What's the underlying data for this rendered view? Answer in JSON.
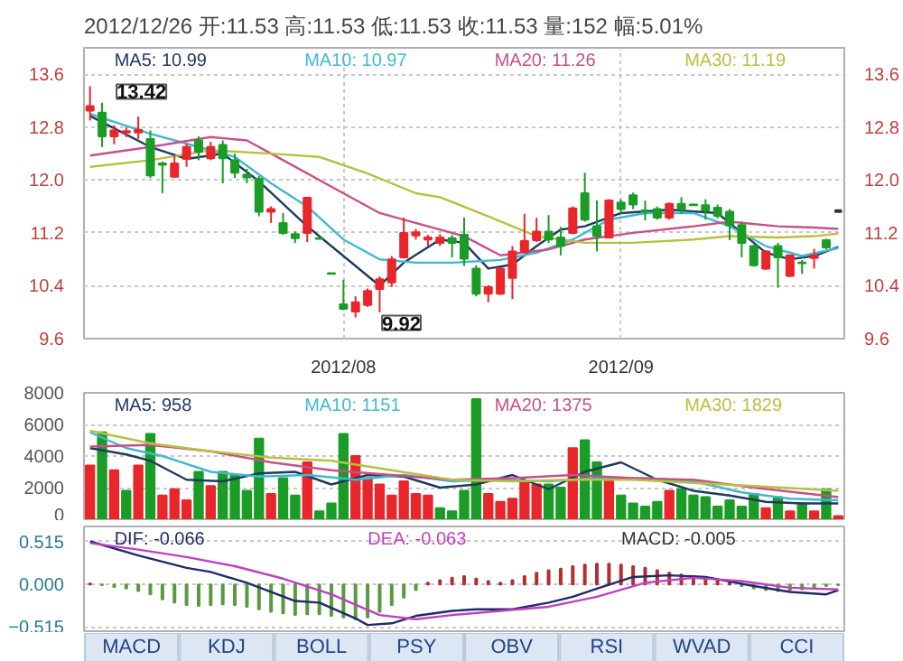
{
  "chart_data": [
    {
      "type": "candlestick",
      "title": "2012/12/26 开:11.53 高:11.53 低:11.53 收:11.53 量:152 幅:5.01%",
      "categories": [
        null,
        null,
        null,
        null,
        null,
        null,
        null,
        null,
        null,
        null,
        null,
        null,
        null,
        null,
        null,
        null,
        null,
        null,
        null,
        null,
        null,
        "2012/08",
        null,
        null,
        null,
        null,
        null,
        null,
        null,
        null,
        null,
        null,
        null,
        null,
        null,
        null,
        null,
        null,
        null,
        null,
        null,
        null,
        null,
        null,
        "2012/09",
        null,
        null,
        null,
        null,
        null,
        null,
        null,
        null,
        null,
        null,
        null,
        null,
        null,
        null,
        null,
        null,
        null,
        null
      ],
      "ohlc": [
        [
          13.05,
          13.42,
          12.9,
          13.12
        ],
        [
          13.02,
          13.17,
          12.5,
          12.66
        ],
        [
          12.66,
          12.83,
          12.54,
          12.75
        ],
        [
          12.72,
          12.8,
          12.65,
          12.74
        ],
        [
          12.72,
          12.96,
          12.62,
          12.76
        ],
        [
          12.62,
          12.75,
          12.03,
          12.07
        ],
        [
          12.25,
          12.28,
          11.8,
          12.23
        ],
        [
          12.05,
          12.37,
          12.03,
          12.25
        ],
        [
          12.32,
          12.55,
          12.2,
          12.5
        ],
        [
          12.6,
          12.66,
          12.3,
          12.43
        ],
        [
          12.33,
          12.58,
          12.3,
          12.5
        ],
        [
          12.53,
          12.6,
          11.95,
          12.33
        ],
        [
          12.3,
          12.4,
          12.03,
          12.11
        ],
        [
          12.08,
          12.17,
          11.95,
          12.04
        ],
        [
          12.02,
          12.06,
          11.45,
          11.52
        ],
        [
          11.52,
          11.6,
          11.35,
          11.56
        ],
        [
          11.35,
          11.5,
          11.17,
          11.2
        ],
        [
          11.18,
          11.22,
          11.05,
          11.12
        ],
        [
          11.2,
          11.74,
          11.06,
          11.73
        ],
        [
          11.12,
          11.12,
          11.11,
          11.11
        ],
        [
          10.59,
          10.59,
          10.58,
          10.58
        ],
        [
          10.12,
          10.49,
          10.03,
          10.05
        ],
        [
          10.01,
          10.24,
          9.92,
          10.15
        ],
        [
          10.11,
          10.36,
          10.08,
          10.32
        ],
        [
          10.35,
          10.54,
          10.0,
          10.5
        ],
        [
          10.45,
          10.85,
          10.38,
          10.8
        ],
        [
          10.83,
          11.43,
          10.81,
          11.2
        ],
        [
          11.16,
          11.26,
          11.1,
          11.21
        ],
        [
          11.1,
          11.17,
          11.0,
          11.13
        ],
        [
          11.05,
          11.18,
          11.0,
          11.13
        ],
        [
          11.12,
          11.17,
          10.83,
          11.05
        ],
        [
          11.17,
          11.43,
          10.7,
          10.81
        ],
        [
          10.66,
          10.71,
          10.24,
          10.28
        ],
        [
          10.28,
          10.41,
          10.15,
          10.38
        ],
        [
          10.28,
          10.68,
          10.26,
          10.66
        ],
        [
          10.52,
          11.0,
          10.2,
          10.92
        ],
        [
          10.92,
          11.49,
          10.9,
          11.08
        ],
        [
          11.09,
          11.43,
          11.06,
          11.22
        ],
        [
          11.22,
          11.47,
          11.05,
          11.1
        ],
        [
          11.13,
          11.29,
          10.86,
          11.0
        ],
        [
          11.2,
          11.6,
          11.18,
          11.57
        ],
        [
          11.8,
          12.11,
          11.37,
          11.4
        ],
        [
          11.3,
          11.69,
          10.92,
          11.15
        ],
        [
          11.13,
          11.71,
          11.12,
          11.69
        ],
        [
          11.66,
          11.71,
          11.49,
          11.56
        ],
        [
          11.77,
          11.81,
          11.56,
          11.63
        ],
        [
          11.54,
          11.69,
          11.39,
          11.52
        ],
        [
          11.56,
          11.6,
          11.4,
          11.43
        ],
        [
          11.43,
          11.66,
          11.4,
          11.64
        ],
        [
          11.64,
          11.74,
          11.49,
          11.56
        ],
        [
          11.63,
          11.63,
          11.62,
          11.62
        ],
        [
          11.62,
          11.71,
          11.4,
          11.54
        ],
        [
          11.58,
          11.63,
          11.42,
          11.46
        ],
        [
          11.52,
          11.56,
          11.09,
          11.32
        ],
        [
          11.32,
          11.37,
          10.83,
          11.05
        ],
        [
          11.0,
          11.02,
          10.69,
          10.71
        ],
        [
          10.66,
          10.94,
          10.64,
          10.92
        ],
        [
          11.0,
          11.05,
          10.37,
          10.83
        ],
        [
          10.55,
          10.87,
          10.53,
          10.86
        ],
        [
          10.75,
          10.79,
          10.58,
          10.74
        ],
        [
          10.82,
          10.96,
          10.66,
          10.86
        ],
        [
          11.09,
          11.11,
          10.95,
          10.98
        ],
        [
          11.53,
          11.53,
          11.53,
          11.53
        ]
      ],
      "series": [
        {
          "name": "MA5: 10.99",
          "type": "line",
          "color": "#1f3a60",
          "values": [
            12.97,
            null,
            null,
            null,
            null,
            12.5,
            null,
            null,
            12.32,
            null,
            null,
            12.4,
            null,
            null,
            11.98,
            null,
            null,
            null,
            11.3,
            null,
            null,
            null,
            10.7,
            null,
            10.4,
            null,
            10.75,
            null,
            null,
            11.1,
            null,
            11.05,
            null,
            10.66,
            null,
            10.72,
            null,
            11.0,
            null,
            11.25,
            null,
            11.3,
            null,
            null,
            11.5,
            null,
            null,
            null,
            11.55,
            null,
            null,
            null,
            11.5,
            null,
            11.2,
            null,
            10.9,
            null,
            10.8,
            null,
            10.85,
            null,
            10.99
          ]
        },
        {
          "name": "MA10: 10.97",
          "type": "line",
          "color": "#3fb8d0",
          "values": [
            13.0,
            null,
            null,
            null,
            null,
            12.7,
            null,
            null,
            null,
            12.5,
            null,
            null,
            12.35,
            null,
            null,
            11.95,
            null,
            null,
            11.6,
            null,
            null,
            11.1,
            null,
            null,
            10.8,
            null,
            null,
            10.75,
            null,
            null,
            10.75,
            null,
            null,
            null,
            10.79,
            null,
            null,
            10.9,
            null,
            null,
            11.1,
            null,
            null,
            11.4,
            null,
            null,
            11.5,
            null,
            null,
            null,
            11.5,
            null,
            null,
            11.3,
            null,
            null,
            11.0,
            null,
            null,
            10.85,
            null,
            null,
            10.97
          ]
        },
        {
          "name": "MA20: 11.26",
          "type": "line",
          "color": "#c8508a",
          "values": [
            12.37,
            null,
            null,
            null,
            null,
            12.5,
            null,
            null,
            null,
            null,
            12.65,
            null,
            null,
            12.6,
            null,
            null,
            12.3,
            null,
            null,
            null,
            11.9,
            null,
            null,
            null,
            11.5,
            null,
            null,
            null,
            11.3,
            null,
            null,
            11.15,
            null,
            null,
            10.86,
            null,
            null,
            null,
            10.95,
            null,
            null,
            11.1,
            null,
            null,
            null,
            11.2,
            null,
            null,
            null,
            null,
            11.3,
            null,
            null,
            11.37,
            null,
            null,
            null,
            11.3,
            null,
            null,
            11.28,
            null,
            11.26
          ]
        },
        {
          "name": "MA30: 11.19",
          "type": "line",
          "color": "#b8c040",
          "values": [
            12.2,
            null,
            null,
            null,
            null,
            12.3,
            null,
            null,
            null,
            null,
            12.45,
            null,
            null,
            null,
            null,
            12.4,
            null,
            null,
            null,
            12.35,
            null,
            null,
            null,
            12.1,
            null,
            null,
            null,
            11.8,
            null,
            11.74,
            null,
            null,
            null,
            11.45,
            null,
            null,
            null,
            11.15,
            null,
            null,
            null,
            11.05,
            null,
            null,
            null,
            11.05,
            null,
            null,
            null,
            null,
            11.1,
            null,
            null,
            11.15,
            null,
            null,
            null,
            11.13,
            null,
            null,
            11.15,
            null,
            11.19
          ]
        }
      ],
      "ylim": [
        9.6,
        14.0
      ],
      "yticks": [
        9.6,
        10.4,
        11.2,
        {
          "value": 12,
          "label": "12.0"
        },
        12.8,
        13.6
      ],
      "y2lim": [
        9.6,
        14.0
      ],
      "y2ticks": [
        9.6,
        10.4,
        11.2,
        {
          "value": 12,
          "label": "12.0"
        },
        12.8,
        13.6
      ],
      "grid": true,
      "legend": "top",
      "annotations": [
        "13.42",
        "9.92"
      ]
    },
    {
      "type": "bar",
      "categories": [
        null,
        null,
        null,
        null,
        null,
        null,
        null,
        null,
        null,
        null,
        null,
        null,
        null,
        null,
        null,
        null,
        null,
        null,
        null,
        null,
        null,
        null,
        null,
        null,
        null,
        null,
        null,
        null,
        null,
        null,
        null,
        null,
        null,
        null,
        null,
        null,
        null,
        null,
        null,
        null,
        null,
        null,
        null,
        null,
        null,
        null,
        null,
        null,
        null,
        null,
        null,
        null,
        null,
        null,
        null,
        null,
        null,
        null,
        null,
        null,
        null,
        null,
        null
      ],
      "series": [
        {
          "type": "bar",
          "values": [
            3400,
            5500,
            3100,
            1800,
            3400,
            5400,
            1500,
            1900,
            1200,
            3000,
            2100,
            3000,
            2800,
            1800,
            5100,
            1600,
            2600,
            1500,
            3600,
            500,
            1000,
            5400,
            4000,
            2600,
            2200,
            1500,
            2400,
            1600,
            1500,
            700,
            500,
            1800,
            7600,
            1600,
            1100,
            1300,
            2400,
            2200,
            2200,
            2000,
            4500,
            5000,
            3600,
            2600,
            1500,
            1000,
            800,
            1100,
            1800,
            1900,
            1500,
            1400,
            800,
            1200,
            800,
            1600,
            700,
            1400,
            500,
            1000,
            500,
            1900,
            200
          ],
          "colors": [
            "#e8262b",
            "#1a9c27",
            "#e8262b",
            "#1a9c27",
            "#e8262b",
            "#1a9c27",
            "#e8262b",
            "#e8262b",
            "#e8262b",
            "#1a9c27",
            "#e8262b",
            "#1a9c27",
            "#1a9c27",
            "#1a9c27",
            "#1a9c27",
            "#e8262b",
            "#1a9c27",
            "#1a9c27",
            "#e8262b",
            "#1a9c27",
            "#1a9c27",
            "#1a9c27",
            "#e8262b",
            "#e8262b",
            "#e8262b",
            "#e8262b",
            "#e8262b",
            "#e8262b",
            "#e8262b",
            "#1a9c27",
            "#1a9c27",
            "#1a9c27",
            "#1a9c27",
            "#e8262b",
            "#e8262b",
            "#e8262b",
            "#e8262b",
            "#e8262b",
            "#1a9c27",
            "#1a9c27",
            "#e8262b",
            "#1a9c27",
            "#1a9c27",
            "#e8262b",
            "#1a9c27",
            "#1a9c27",
            "#1a9c27",
            "#1a9c27",
            "#e8262b",
            "#1a9c27",
            "#1a9c27",
            "#1a9c27",
            "#1a9c27",
            "#1a9c27",
            "#1a9c27",
            "#1a9c27",
            "#e8262b",
            "#1a9c27",
            "#e8262b",
            "#1a9c27",
            "#e8262b",
            "#1a9c27",
            "#e8262b"
          ]
        },
        {
          "name": "MA5: 958",
          "type": "line",
          "color": "#1f3a60",
          "values": [
            4500,
            null,
            null,
            4100,
            null,
            3700,
            null,
            null,
            2500,
            null,
            null,
            2400,
            null,
            null,
            2900,
            null,
            null,
            3000,
            null,
            null,
            2200,
            null,
            null,
            2800,
            null,
            null,
            2700,
            null,
            null,
            2000,
            null,
            null,
            2200,
            null,
            null,
            2800,
            null,
            null,
            1900,
            null,
            null,
            3000,
            null,
            null,
            3600,
            null,
            null,
            2500,
            null,
            null,
            1800,
            null,
            null,
            1500,
            null,
            null,
            1100,
            null,
            null,
            1000,
            null,
            null,
            1000
          ]
        },
        {
          "name": "MA10: 1151",
          "type": "line",
          "color": "#3fb8d0",
          "values": [
            5500,
            null,
            null,
            4500,
            null,
            null,
            4000,
            null,
            null,
            null,
            3000,
            null,
            null,
            null,
            2700,
            null,
            null,
            null,
            2800,
            null,
            null,
            null,
            2500,
            null,
            null,
            null,
            2800,
            null,
            null,
            null,
            2400,
            null,
            null,
            null,
            2500,
            null,
            null,
            null,
            2400,
            null,
            null,
            null,
            2600,
            null,
            null,
            null,
            2600,
            null,
            null,
            null,
            2400,
            null,
            null,
            null,
            1700,
            null,
            null,
            null,
            1300,
            null,
            null,
            null,
            1200
          ]
        },
        {
          "name": "MA20: 1375",
          "type": "line",
          "color": "#c8508a",
          "values": [
            4600,
            null,
            null,
            null,
            null,
            4700,
            null,
            null,
            null,
            null,
            4300,
            null,
            null,
            null,
            null,
            3600,
            null,
            null,
            null,
            null,
            3100,
            null,
            null,
            null,
            null,
            2800,
            null,
            null,
            null,
            null,
            2500,
            null,
            null,
            null,
            null,
            2600,
            null,
            null,
            null,
            null,
            2800,
            null,
            null,
            null,
            null,
            2600,
            null,
            null,
            null,
            null,
            2500,
            null,
            null,
            null,
            null,
            2000,
            null,
            null,
            null,
            null,
            null,
            null,
            1400
          ]
        },
        {
          "name": "MA30: 1829",
          "type": "line",
          "color": "#b8c040",
          "values": [
            5600,
            null,
            null,
            null,
            null,
            4800,
            null,
            null,
            null,
            null,
            4300,
            null,
            null,
            null,
            null,
            3900,
            null,
            null,
            null,
            null,
            3700,
            null,
            null,
            null,
            null,
            3100,
            null,
            null,
            null,
            null,
            2500,
            null,
            null,
            null,
            null,
            2400,
            null,
            null,
            null,
            null,
            2500,
            null,
            null,
            null,
            null,
            2500,
            null,
            null,
            null,
            null,
            2300,
            null,
            null,
            null,
            null,
            2100,
            null,
            null,
            null,
            null,
            null,
            null,
            1800
          ]
        }
      ],
      "ylim": [
        0,
        8000
      ],
      "yticks": [
        0,
        2000,
        4000,
        6000,
        8000
      ],
      "grid": "y",
      "legend": "top",
      "tick_labels": "y"
    },
    {
      "type": "line",
      "categories": [
        null,
        null,
        null,
        null,
        null,
        null,
        null,
        null,
        null,
        null,
        null,
        null,
        null,
        null,
        null,
        null,
        null,
        null,
        null,
        null,
        null,
        null,
        null,
        null,
        null,
        null,
        null,
        null,
        null,
        null,
        null,
        null,
        null,
        null,
        null,
        null,
        null,
        null,
        null,
        null,
        null,
        null,
        null,
        null,
        null,
        null,
        null,
        null,
        null,
        null,
        null,
        null,
        null,
        null,
        null,
        null,
        null,
        null,
        null,
        null,
        null,
        null,
        null
      ],
      "series": [
        {
          "name": "DIF: -0.066",
          "type": "line",
          "color": "#1f2a6a",
          "values": [
            0.52,
            null,
            null,
            null,
            0.35,
            null,
            null,
            null,
            0.2,
            null,
            0.15,
            null,
            null,
            0.02,
            null,
            null,
            null,
            -0.2,
            null,
            -0.22,
            null,
            null,
            -0.41,
            -0.49,
            null,
            -0.47,
            null,
            -0.38,
            null,
            null,
            -0.32,
            null,
            -0.3,
            null,
            null,
            -0.3,
            null,
            null,
            -0.22,
            null,
            -0.15,
            null,
            -0.05,
            null,
            null,
            0.09,
            null,
            null,
            0.11,
            null,
            null,
            0.09,
            null,
            null,
            null,
            -0.02,
            null,
            null,
            -0.09,
            null,
            null,
            -0.12,
            -0.07
          ]
        },
        {
          "name": "DEA: -0.063",
          "type": "line",
          "color": "#c040c0",
          "values": [
            0.5,
            null,
            null,
            null,
            0.42,
            null,
            null,
            null,
            0.33,
            null,
            null,
            null,
            0.22,
            null,
            null,
            null,
            0.07,
            null,
            null,
            null,
            -0.12,
            null,
            null,
            null,
            -0.37,
            null,
            null,
            -0.42,
            null,
            null,
            -0.37,
            null,
            null,
            null,
            -0.32,
            null,
            null,
            null,
            -0.27,
            null,
            null,
            null,
            -0.15,
            null,
            null,
            null,
            0.02,
            null,
            null,
            null,
            0.08,
            null,
            null,
            null,
            0.04,
            null,
            null,
            null,
            -0.04,
            null,
            null,
            null,
            -0.06
          ]
        },
        {
          "name": "MACD: -0.005",
          "type": "bar",
          "values": [
            0.01,
            -0.01,
            -0.03,
            -0.05,
            -0.08,
            -0.12,
            -0.18,
            -0.22,
            -0.25,
            -0.26,
            -0.25,
            -0.24,
            -0.25,
            -0.27,
            -0.3,
            -0.33,
            -0.35,
            -0.37,
            -0.36,
            -0.36,
            -0.38,
            -0.4,
            -0.42,
            -0.4,
            -0.33,
            -0.25,
            -0.16,
            -0.07,
            0.02,
            0.05,
            0.08,
            0.1,
            0.07,
            0.04,
            0.02,
            0.05,
            0.1,
            0.14,
            0.17,
            0.19,
            0.22,
            0.24,
            0.25,
            0.25,
            0.24,
            0.22,
            0.2,
            0.17,
            0.14,
            0.12,
            0.1,
            0.08,
            0.05,
            0.02,
            -0.02,
            -0.05,
            -0.07,
            -0.08,
            -0.07,
            -0.06,
            -0.04,
            -0.02,
            -0.01
          ],
          "colors": [
            "#b03030",
            "#5a9a40",
            "#5a9a40",
            "#5a9a40",
            "#5a9a40",
            "#5a9a40",
            "#5a9a40",
            "#5a9a40",
            "#5a9a40",
            "#5a9a40",
            "#5a9a40",
            "#5a9a40",
            "#5a9a40",
            "#5a9a40",
            "#5a9a40",
            "#5a9a40",
            "#5a9a40",
            "#5a9a40",
            "#5a9a40",
            "#5a9a40",
            "#5a9a40",
            "#5a9a40",
            "#5a9a40",
            "#5a9a40",
            "#5a9a40",
            "#5a9a40",
            "#5a9a40",
            "#5a9a40",
            "#b03030",
            "#b03030",
            "#b03030",
            "#b03030",
            "#b03030",
            "#b03030",
            "#b03030",
            "#b03030",
            "#b03030",
            "#b03030",
            "#b03030",
            "#b03030",
            "#b03030",
            "#b03030",
            "#b03030",
            "#b03030",
            "#b03030",
            "#b03030",
            "#b03030",
            "#b03030",
            "#b03030",
            "#b03030",
            "#b03030",
            "#b03030",
            "#b03030",
            "#b03030",
            "#5a9a40",
            "#5a9a40",
            "#5a9a40",
            "#5a9a40",
            "#5a9a40",
            "#5a9a40",
            "#5a9a40",
            "#5a9a40",
            "#5a9a40"
          ]
        }
      ],
      "ylim": [
        -0.565,
        0.7
      ],
      "yticks": [
        -0.515,
        {
          "value": 0,
          "label": "0.000"
        },
        0.515
      ],
      "grid": "y",
      "legend": "top",
      "tick_labels": "y"
    },
    {
      "type": "other",
      "annotations": [
        "MACD",
        "KDJ",
        "BOLL",
        "PSY",
        "OBV",
        "RSI",
        "WVAD",
        "CCI"
      ]
    }
  ]
}
